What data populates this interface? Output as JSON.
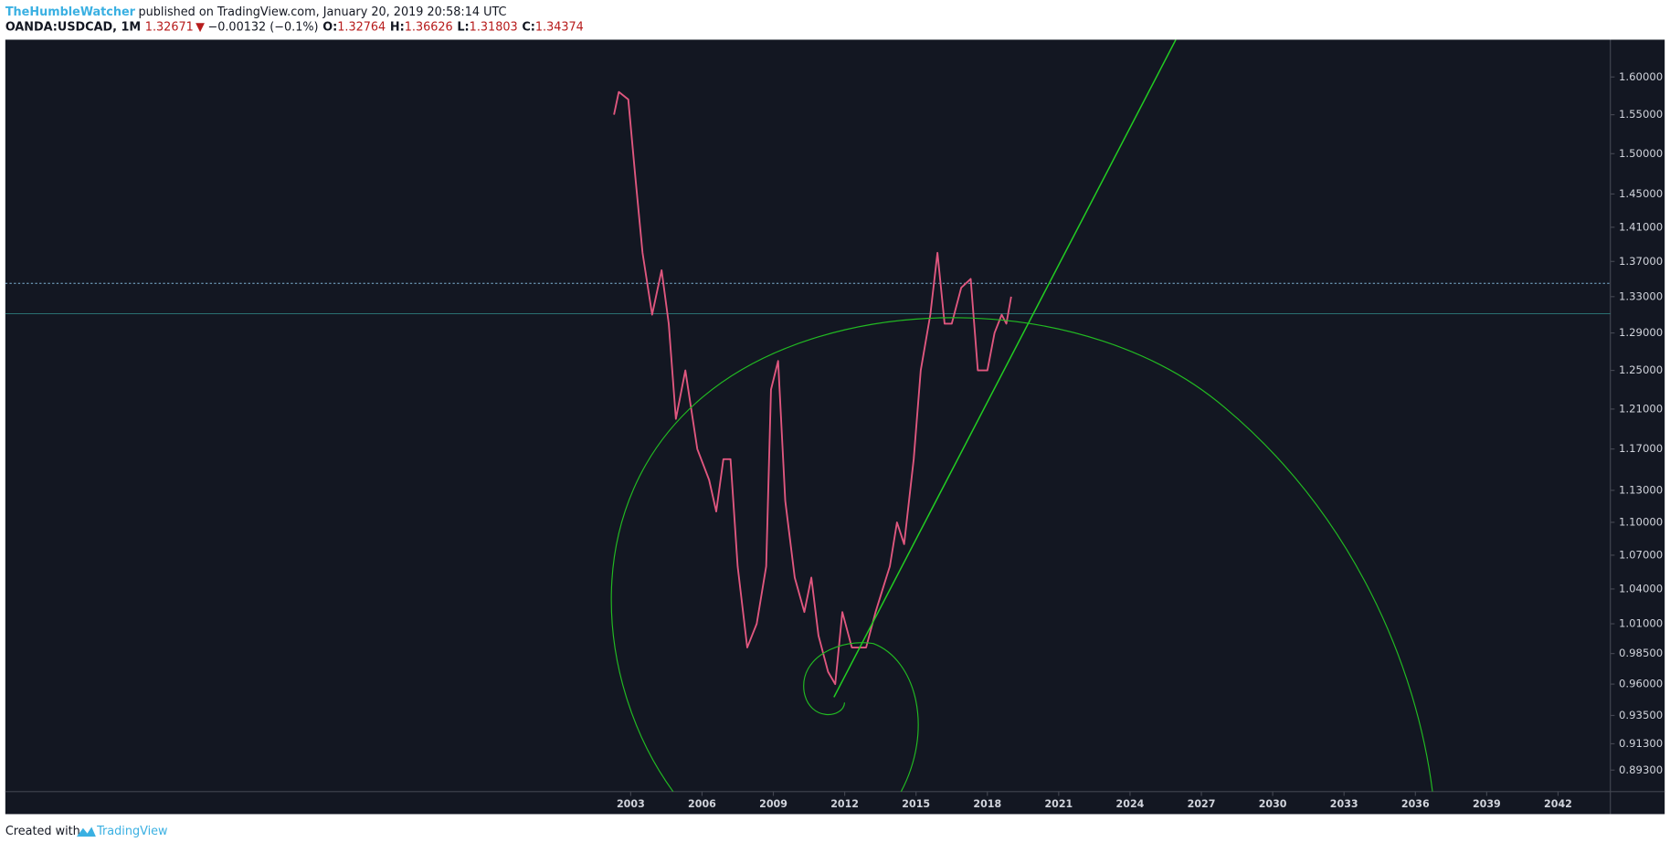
{
  "header": {
    "author": "TheHumbleWatcher",
    "published": "published on TradingView.com, January 20, 2019 20:58:14 UTC"
  },
  "legend": {
    "symbol": "OANDA:USDCAD, 1M",
    "last": "1.32671",
    "arrow": "▼",
    "change": "−0.00132 (−0.1%)",
    "open_label": "O:",
    "open": "1.32764",
    "high_label": "H:",
    "high": "1.36626",
    "low_label": "L:",
    "low": "1.31803",
    "close_label": "C:",
    "close": "1.34374"
  },
  "footer": {
    "text": "Created with",
    "brand": "TradingView"
  },
  "chart_data": {
    "type": "line",
    "color": "#e0577f",
    "log_scale": true,
    "grid": false,
    "x": [
      2002.3,
      2002.5,
      2002.9,
      2003.2,
      2003.5,
      2003.9,
      2004.3,
      2004.6,
      2004.9,
      2005.3,
      2005.8,
      2006.3,
      2006.6,
      2006.9,
      2007.2,
      2007.5,
      2007.9,
      2008.3,
      2008.7,
      2008.9,
      2009.2,
      2009.5,
      2009.9,
      2010.3,
      2010.6,
      2010.9,
      2011.3,
      2011.6,
      2011.9,
      2012.3,
      2012.6,
      2012.9,
      2013.3,
      2013.6,
      2013.9,
      2014.2,
      2014.5,
      2014.9,
      2015.2,
      2015.6,
      2015.9,
      2016.2,
      2016.5,
      2016.9,
      2017.3,
      2017.6,
      2017.8,
      2018.0,
      2018.3,
      2018.6,
      2018.8,
      2019.0
    ],
    "values": [
      1.55,
      1.58,
      1.57,
      1.47,
      1.38,
      1.31,
      1.36,
      1.3,
      1.2,
      1.25,
      1.17,
      1.14,
      1.11,
      1.16,
      1.16,
      1.06,
      0.99,
      1.01,
      1.06,
      1.23,
      1.26,
      1.12,
      1.05,
      1.02,
      1.05,
      1.0,
      0.97,
      0.96,
      1.02,
      0.99,
      0.99,
      0.99,
      1.02,
      1.04,
      1.06,
      1.1,
      1.08,
      1.16,
      1.25,
      1.31,
      1.38,
      1.3,
      1.3,
      1.34,
      1.35,
      1.25,
      1.25,
      1.25,
      1.29,
      1.31,
      1.3,
      1.33
    ],
    "horizontal_lines": [
      {
        "value": 1.345,
        "color": "#7fb3d5"
      },
      {
        "value": 1.311,
        "color": "#2e7d7d"
      }
    ],
    "xlim": [
      1976.7,
      2044.2
    ],
    "xticks": [
      2003,
      2006,
      2009,
      2012,
      2015,
      2018,
      2021,
      2024,
      2027,
      2030,
      2033,
      2036,
      2039,
      2042
    ],
    "ylim": [
      0.877,
      1.651
    ],
    "yticks": [
      {
        "value": 1.6,
        "label": "1.60000"
      },
      {
        "value": 1.55,
        "label": "1.55000"
      },
      {
        "value": 1.5,
        "label": "1.50000"
      },
      {
        "value": 1.45,
        "label": "1.45000"
      },
      {
        "value": 1.41,
        "label": "1.41000"
      },
      {
        "value": 1.37,
        "label": "1.37000"
      },
      {
        "value": 1.33,
        "label": "1.33000"
      },
      {
        "value": 1.29,
        "label": "1.29000"
      },
      {
        "value": 1.25,
        "label": "1.25000"
      },
      {
        "value": 1.21,
        "label": "1.21000"
      },
      {
        "value": 1.17,
        "label": "1.17000"
      },
      {
        "value": 1.13,
        "label": "1.13000"
      },
      {
        "value": 1.1,
        "label": "1.10000"
      },
      {
        "value": 1.07,
        "label": "1.07000"
      },
      {
        "value": 1.04,
        "label": "1.04000"
      },
      {
        "value": 1.01,
        "label": "1.01000"
      },
      {
        "value": 0.985,
        "label": "0.98500"
      },
      {
        "value": 0.96,
        "label": "0.96000"
      },
      {
        "value": 0.935,
        "label": "0.93500"
      },
      {
        "value": 0.913,
        "label": "0.91300"
      },
      {
        "value": 0.893,
        "label": "0.89300"
      }
    ]
  }
}
